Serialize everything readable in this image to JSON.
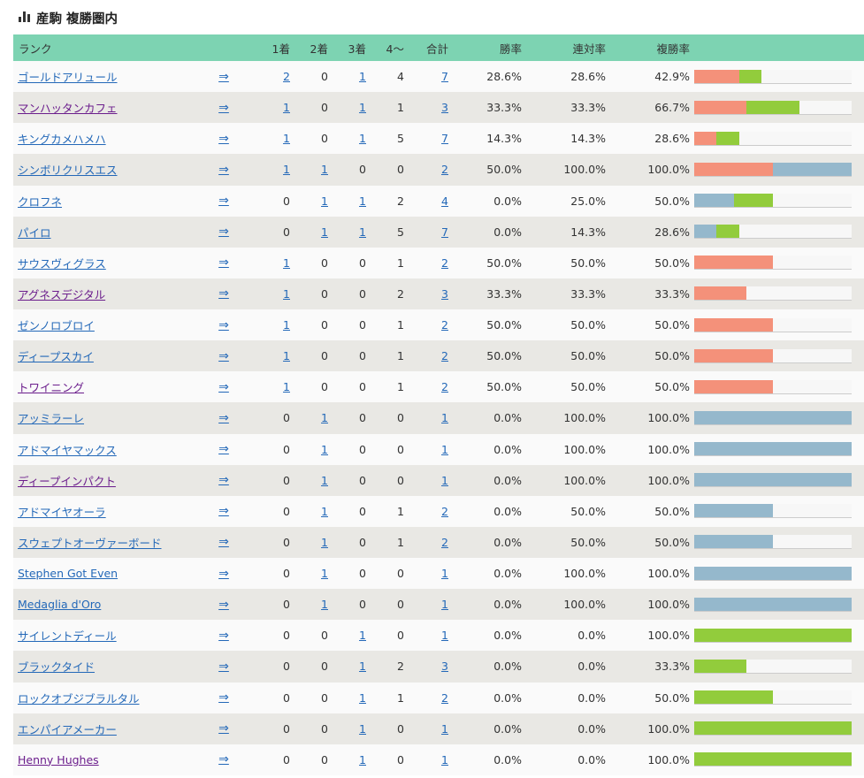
{
  "title": "産駒 複勝圏内",
  "colors": {
    "header": "#7dd3b2",
    "first": "#f4917a",
    "second": "#95b8cc",
    "third": "#92cc3c"
  },
  "columns": [
    "ランク",
    "",
    "1着",
    "2着",
    "3着",
    "4〜",
    "合計",
    "勝率",
    "連対率",
    "複勝率",
    ""
  ],
  "arrow": "⇒",
  "rows": [
    {
      "name": "ゴールドアリュール",
      "visited": false,
      "first": 2,
      "second": 0,
      "third": 1,
      "other": 4,
      "total": 7,
      "win": "28.6%",
      "quinella": "28.6%",
      "place": "42.9%"
    },
    {
      "name": "マンハッタンカフェ",
      "visited": true,
      "first": 1,
      "second": 0,
      "third": 1,
      "other": 1,
      "total": 3,
      "win": "33.3%",
      "quinella": "33.3%",
      "place": "66.7%"
    },
    {
      "name": "キングカメハメハ",
      "visited": false,
      "first": 1,
      "second": 0,
      "third": 1,
      "other": 5,
      "total": 7,
      "win": "14.3%",
      "quinella": "14.3%",
      "place": "28.6%"
    },
    {
      "name": "シンボリクリスエス",
      "visited": false,
      "first": 1,
      "second": 1,
      "third": 0,
      "other": 0,
      "total": 2,
      "win": "50.0%",
      "quinella": "100.0%",
      "place": "100.0%"
    },
    {
      "name": "クロフネ",
      "visited": false,
      "first": 0,
      "second": 1,
      "third": 1,
      "other": 2,
      "total": 4,
      "win": "0.0%",
      "quinella": "25.0%",
      "place": "50.0%"
    },
    {
      "name": "パイロ",
      "visited": false,
      "first": 0,
      "second": 1,
      "third": 1,
      "other": 5,
      "total": 7,
      "win": "0.0%",
      "quinella": "14.3%",
      "place": "28.6%"
    },
    {
      "name": "サウスヴィグラス",
      "visited": false,
      "first": 1,
      "second": 0,
      "third": 0,
      "other": 1,
      "total": 2,
      "win": "50.0%",
      "quinella": "50.0%",
      "place": "50.0%"
    },
    {
      "name": "アグネスデジタル",
      "visited": true,
      "first": 1,
      "second": 0,
      "third": 0,
      "other": 2,
      "total": 3,
      "win": "33.3%",
      "quinella": "33.3%",
      "place": "33.3%"
    },
    {
      "name": "ゼンノロブロイ",
      "visited": false,
      "first": 1,
      "second": 0,
      "third": 0,
      "other": 1,
      "total": 2,
      "win": "50.0%",
      "quinella": "50.0%",
      "place": "50.0%"
    },
    {
      "name": "ディープスカイ",
      "visited": false,
      "first": 1,
      "second": 0,
      "third": 0,
      "other": 1,
      "total": 2,
      "win": "50.0%",
      "quinella": "50.0%",
      "place": "50.0%"
    },
    {
      "name": "トワイニング",
      "visited": true,
      "first": 1,
      "second": 0,
      "third": 0,
      "other": 1,
      "total": 2,
      "win": "50.0%",
      "quinella": "50.0%",
      "place": "50.0%"
    },
    {
      "name": "アッミラーレ",
      "visited": false,
      "first": 0,
      "second": 1,
      "third": 0,
      "other": 0,
      "total": 1,
      "win": "0.0%",
      "quinella": "100.0%",
      "place": "100.0%"
    },
    {
      "name": "アドマイヤマックス",
      "visited": false,
      "first": 0,
      "second": 1,
      "third": 0,
      "other": 0,
      "total": 1,
      "win": "0.0%",
      "quinella": "100.0%",
      "place": "100.0%"
    },
    {
      "name": "ディープインパクト",
      "visited": true,
      "first": 0,
      "second": 1,
      "third": 0,
      "other": 0,
      "total": 1,
      "win": "0.0%",
      "quinella": "100.0%",
      "place": "100.0%"
    },
    {
      "name": "アドマイヤオーラ",
      "visited": false,
      "first": 0,
      "second": 1,
      "third": 0,
      "other": 1,
      "total": 2,
      "win": "0.0%",
      "quinella": "50.0%",
      "place": "50.0%"
    },
    {
      "name": "スウェプトオーヴァーボード",
      "visited": false,
      "first": 0,
      "second": 1,
      "third": 0,
      "other": 1,
      "total": 2,
      "win": "0.0%",
      "quinella": "50.0%",
      "place": "50.0%"
    },
    {
      "name": "Stephen Got Even",
      "visited": false,
      "first": 0,
      "second": 1,
      "third": 0,
      "other": 0,
      "total": 1,
      "win": "0.0%",
      "quinella": "100.0%",
      "place": "100.0%"
    },
    {
      "name": "Medaglia d'Oro",
      "visited": false,
      "first": 0,
      "second": 1,
      "third": 0,
      "other": 0,
      "total": 1,
      "win": "0.0%",
      "quinella": "100.0%",
      "place": "100.0%"
    },
    {
      "name": "サイレントディール",
      "visited": false,
      "first": 0,
      "second": 0,
      "third": 1,
      "other": 0,
      "total": 1,
      "win": "0.0%",
      "quinella": "0.0%",
      "place": "100.0%"
    },
    {
      "name": "ブラックタイド",
      "visited": false,
      "first": 0,
      "second": 0,
      "third": 1,
      "other": 2,
      "total": 3,
      "win": "0.0%",
      "quinella": "0.0%",
      "place": "33.3%"
    },
    {
      "name": "ロックオブジブラルタル",
      "visited": false,
      "first": 0,
      "second": 0,
      "third": 1,
      "other": 1,
      "total": 2,
      "win": "0.0%",
      "quinella": "0.0%",
      "place": "50.0%"
    },
    {
      "name": "エンパイアメーカー",
      "visited": false,
      "first": 0,
      "second": 0,
      "third": 1,
      "other": 0,
      "total": 1,
      "win": "0.0%",
      "quinella": "0.0%",
      "place": "100.0%"
    },
    {
      "name": "Henny Hughes",
      "visited": true,
      "first": 0,
      "second": 0,
      "third": 1,
      "other": 0,
      "total": 1,
      "win": "0.0%",
      "quinella": "0.0%",
      "place": "100.0%"
    }
  ]
}
